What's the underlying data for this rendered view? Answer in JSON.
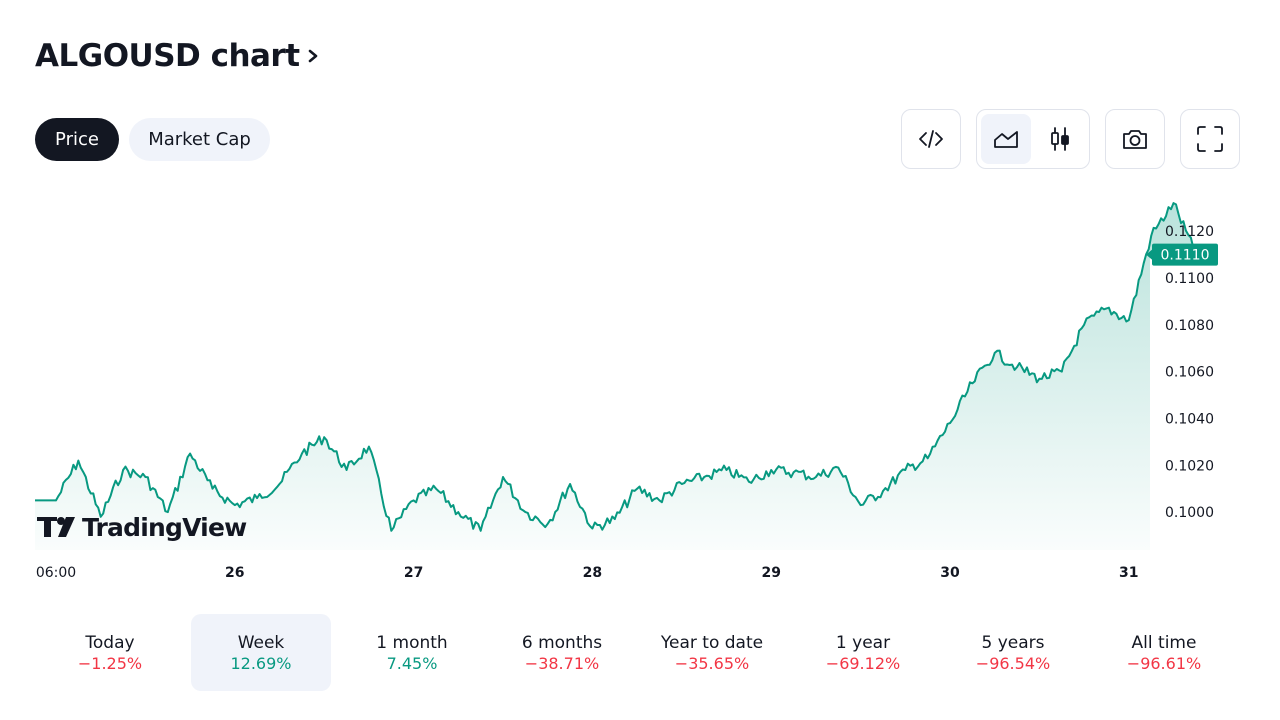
{
  "header": {
    "title": "ALGOUSD chart"
  },
  "tabs": [
    {
      "label": "Price",
      "active": true
    },
    {
      "label": "Market Cap",
      "active": false
    }
  ],
  "toolbar": {
    "icons": [
      "embed-code-icon",
      "area-chart-icon",
      "candlestick-icon",
      "camera-icon",
      "fullscreen-icon"
    ],
    "active_style": "area"
  },
  "colors": {
    "accent": "#089981",
    "negative": "#f23645",
    "dark": "#131722",
    "pill_bg": "#f0f3fa"
  },
  "watermark": "TradingView",
  "chart_data": {
    "type": "area",
    "series": [
      {
        "name": "",
        "x_days": [
          0,
          0.125,
          0.25,
          0.375,
          0.5,
          0.625,
          0.75,
          0.875,
          1.0,
          1.125,
          1.25,
          1.375,
          1.5,
          1.625,
          1.75,
          1.875,
          2.0,
          2.125,
          2.25,
          2.375,
          2.5,
          2.625,
          2.75,
          2.875,
          3.0,
          3.125,
          3.25,
          3.375,
          3.5,
          3.625,
          3.75,
          3.875,
          4.0,
          4.125,
          4.25,
          4.375,
          4.5,
          4.625,
          4.75,
          4.875,
          5.0,
          5.125,
          5.25,
          5.375,
          5.5,
          5.625,
          5.75,
          5.875,
          6.0,
          6.125,
          6.25,
          6.375
        ],
        "values": [
          0.1005,
          0.1022,
          0.0998,
          0.1018,
          0.1015,
          0.1,
          0.1025,
          0.101,
          0.1003,
          0.1006,
          0.1012,
          0.1025,
          0.1032,
          0.1018,
          0.1028,
          0.0992,
          0.1005,
          0.101,
          0.1,
          0.0992,
          0.1015,
          0.1,
          0.0995,
          0.1012,
          0.0993,
          0.0997,
          0.101,
          0.1005,
          0.1012,
          0.1015,
          0.1018,
          0.1013,
          0.1018,
          0.1017,
          0.1015,
          0.1019,
          0.1003,
          0.1009,
          0.1018,
          0.1023,
          0.1038,
          0.1055,
          0.1068,
          0.1062,
          0.1057,
          0.106,
          0.108,
          0.1087,
          0.1082,
          0.1118,
          0.1132,
          0.111
        ]
      }
    ],
    "x_ticks": [
      "06:00",
      "26",
      "27",
      "28",
      "29",
      "30",
      "31"
    ],
    "y_ticks": [
      "0.1000",
      "0.1020",
      "0.1040",
      "0.1060",
      "0.1080",
      "0.1100",
      "0.1120"
    ],
    "ylim": [
      0.0985,
      0.1135
    ],
    "last_value": "0.1110",
    "grid": false,
    "legend": "none"
  },
  "timeframes": [
    {
      "label": "Today",
      "change": "−1.25%",
      "sign": "neg",
      "active": false
    },
    {
      "label": "Week",
      "change": "12.69%",
      "sign": "pos",
      "active": true
    },
    {
      "label": "1 month",
      "change": "7.45%",
      "sign": "pos",
      "active": false
    },
    {
      "label": "6 months",
      "change": "−38.71%",
      "sign": "neg",
      "active": false
    },
    {
      "label": "Year to date",
      "change": "−35.65%",
      "sign": "neg",
      "active": false
    },
    {
      "label": "1 year",
      "change": "−69.12%",
      "sign": "neg",
      "active": false
    },
    {
      "label": "5 years",
      "change": "−96.54%",
      "sign": "neg",
      "active": false
    },
    {
      "label": "All time",
      "change": "−96.61%",
      "sign": "neg",
      "active": false
    }
  ]
}
